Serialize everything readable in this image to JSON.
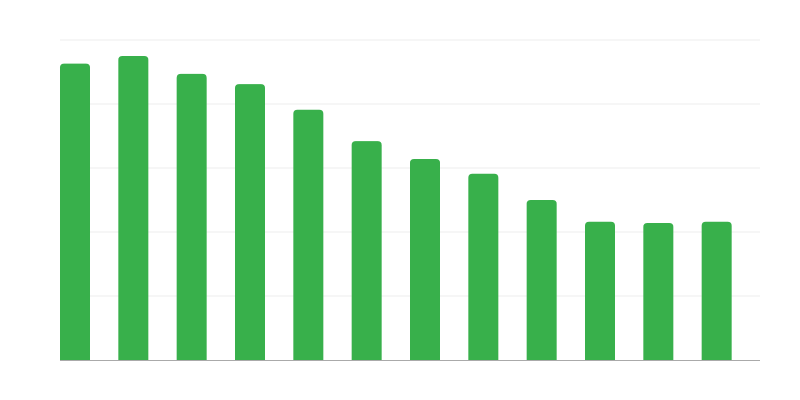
{
  "chart_data": {
    "type": "bar",
    "title": "",
    "xlabel": "",
    "ylabel": "",
    "categories": [
      "",
      "",
      "",
      "",
      "",
      "",
      "",
      "",
      "",
      "",
      "",
      ""
    ],
    "values": [
      4.63,
      4.75,
      4.47,
      4.31,
      3.91,
      3.42,
      3.14,
      2.91,
      2.5,
      2.16,
      2.14,
      2.16
    ],
    "ylim": [
      0,
      5
    ],
    "grid": true,
    "gridlines": [
      1,
      2,
      3,
      4,
      5
    ],
    "legend": "none",
    "bar_color": "#38b04b",
    "grid_color": "#eeeeee",
    "axis_color": "#aaaaaa"
  }
}
